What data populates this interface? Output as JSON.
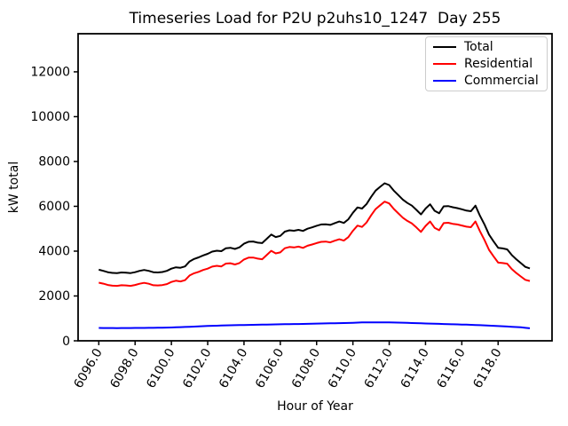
{
  "chart_data": {
    "type": "line",
    "title": "Timeseries Load for P2U p2uhs10_1247  Day 255",
    "xlabel": "Hour of Year",
    "ylabel": "kW total",
    "xlim": [
      6094.86,
      6120.97
    ],
    "ylim": [
      0,
      13700
    ],
    "grid": false,
    "legend_position": "upper right",
    "x_ticks": [
      6096,
      6098,
      6100,
      6102,
      6104,
      6106,
      6108,
      6110,
      6112,
      6114,
      6116,
      6118
    ],
    "x_tick_labels": [
      "6096.0",
      "6098.0",
      "6100.0",
      "6102.0",
      "6104.0",
      "6106.0",
      "6108.0",
      "6110.0",
      "6112.0",
      "6114.0",
      "6116.0",
      "6118.0"
    ],
    "y_ticks": [
      0,
      2000,
      4000,
      6000,
      8000,
      10000,
      12000
    ],
    "y_tick_labels": [
      "0",
      "2000",
      "4000",
      "6000",
      "8000",
      "10000",
      "12000"
    ],
    "x_start": 6096.0,
    "x_step": 0.25,
    "series": [
      {
        "name": "Total",
        "color": "#000000",
        "values": [
          3170,
          3120,
          3060,
          3030,
          3020,
          3050,
          3040,
          3020,
          3060,
          3120,
          3160,
          3120,
          3060,
          3050,
          3070,
          3120,
          3220,
          3280,
          3260,
          3320,
          3540,
          3650,
          3720,
          3810,
          3880,
          3980,
          4020,
          4000,
          4130,
          4150,
          4100,
          4170,
          4330,
          4420,
          4430,
          4380,
          4360,
          4550,
          4740,
          4630,
          4680,
          4870,
          4930,
          4910,
          4950,
          4900,
          5000,
          5060,
          5130,
          5190,
          5200,
          5170,
          5250,
          5320,
          5260,
          5420,
          5710,
          5950,
          5900,
          6100,
          6420,
          6700,
          6870,
          7030,
          6950,
          6700,
          6500,
          6300,
          6150,
          6030,
          5840,
          5640,
          5900,
          6090,
          5800,
          5690,
          6000,
          6010,
          5960,
          5920,
          5870,
          5810,
          5780,
          6030,
          5580,
          5190,
          4740,
          4440,
          4150,
          4120,
          4080,
          3830,
          3640,
          3470,
          3300,
          3230
        ]
      },
      {
        "name": "Residential",
        "color": "#ff0000",
        "values": [
          2595,
          2550,
          2490,
          2460,
          2450,
          2480,
          2470,
          2450,
          2490,
          2545,
          2585,
          2545,
          2480,
          2470,
          2485,
          2530,
          2625,
          2680,
          2650,
          2705,
          2915,
          3015,
          3075,
          3160,
          3220,
          3310,
          3345,
          3320,
          3445,
          3460,
          3405,
          3470,
          3625,
          3710,
          3715,
          3665,
          3640,
          3825,
          4015,
          3900,
          3945,
          4130,
          4185,
          4165,
          4200,
          4145,
          4240,
          4295,
          4360,
          4415,
          4425,
          4390,
          4465,
          4530,
          4470,
          4625,
          4905,
          5140,
          5080,
          5280,
          5595,
          5875,
          6045,
          6210,
          6130,
          5885,
          5685,
          5490,
          5350,
          5235,
          5055,
          4860,
          5125,
          5320,
          5040,
          4935,
          5250,
          5265,
          5220,
          5190,
          5145,
          5090,
          5070,
          5325,
          4885,
          4500,
          4060,
          3770,
          3490,
          3470,
          3440,
          3205,
          3025,
          2870,
          2720,
          2670
        ]
      },
      {
        "name": "Commercial",
        "color": "#0000ff",
        "values": [
          575,
          572,
          570,
          569,
          568,
          569,
          570,
          571,
          573,
          574,
          576,
          577,
          579,
          581,
          584,
          588,
          595,
          602,
          609,
          617,
          626,
          635,
          644,
          652,
          660,
          668,
          675,
          681,
          687,
          692,
          696,
          700,
          705,
          709,
          713,
          716,
          720,
          723,
          727,
          731,
          736,
          740,
          744,
          747,
          750,
          754,
          758,
          763,
          768,
          773,
          777,
          780,
          784,
          788,
          792,
          797,
          805,
          812,
          818,
          822,
          824,
          825,
          824,
          822,
          820,
          817,
          813,
          808,
          800,
          793,
          786,
          779,
          773,
          768,
          762,
          756,
          750,
          744,
          738,
          732,
          726,
          719,
          712,
          705,
          697,
          688,
          679,
          669,
          659,
          649,
          638,
          627,
          615,
          601,
          580,
          560
        ]
      }
    ]
  }
}
